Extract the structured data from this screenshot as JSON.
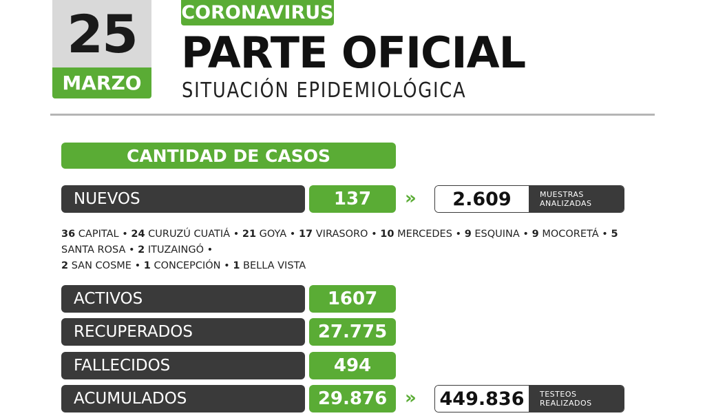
{
  "date": {
    "day": "25",
    "month": "MARZO"
  },
  "header": {
    "tag": "CORONAVIRUS",
    "title": "PARTE OFICIAL",
    "subtitle": "SITUACIÓN EPIDEMIOLÓGICA"
  },
  "section_title": "CANTIDAD DE CASOS",
  "rows": [
    {
      "label": "NUEVOS",
      "value": "137"
    },
    {
      "label": "ACTIVOS",
      "value": "1607"
    },
    {
      "label": "RECUPERADOS",
      "value": "27.775"
    },
    {
      "label": "FALLECIDOS",
      "value": "494"
    },
    {
      "label": "ACUMULADOS",
      "value": "29.876"
    }
  ],
  "muestras": {
    "value": "2.609",
    "label_line1": "MUESTRAS",
    "label_line2": "ANALIZADAS"
  },
  "testeos": {
    "value": "449.836",
    "label_line1": "TESTEOS",
    "label_line2": "REALIZADOS"
  },
  "breakdown": [
    {
      "count": "36",
      "place": "CAPITAL"
    },
    {
      "count": "24",
      "place": "CURUZÚ CUATIÁ"
    },
    {
      "count": "21",
      "place": "GOYA"
    },
    {
      "count": "17",
      "place": "VIRASORO"
    },
    {
      "count": "10",
      "place": "MERCEDES"
    },
    {
      "count": "9",
      "place": "ESQUINA"
    },
    {
      "count": "9",
      "place": "MOCORETÁ"
    },
    {
      "count": "5",
      "place": "SANTA ROSA"
    },
    {
      "count": "2",
      "place": "ITUZAINGÓ"
    },
    {
      "count": "2",
      "place": "SAN COSME"
    },
    {
      "count": "1",
      "place": "CONCEPCIÓN"
    },
    {
      "count": "1",
      "place": "BELLA VISTA"
    }
  ],
  "colors": {
    "green": "#5aac35",
    "dark": "#3a3a3a",
    "gray": "#d9d9d9"
  },
  "icons": {
    "chevron": "double-chevron-right-icon"
  }
}
